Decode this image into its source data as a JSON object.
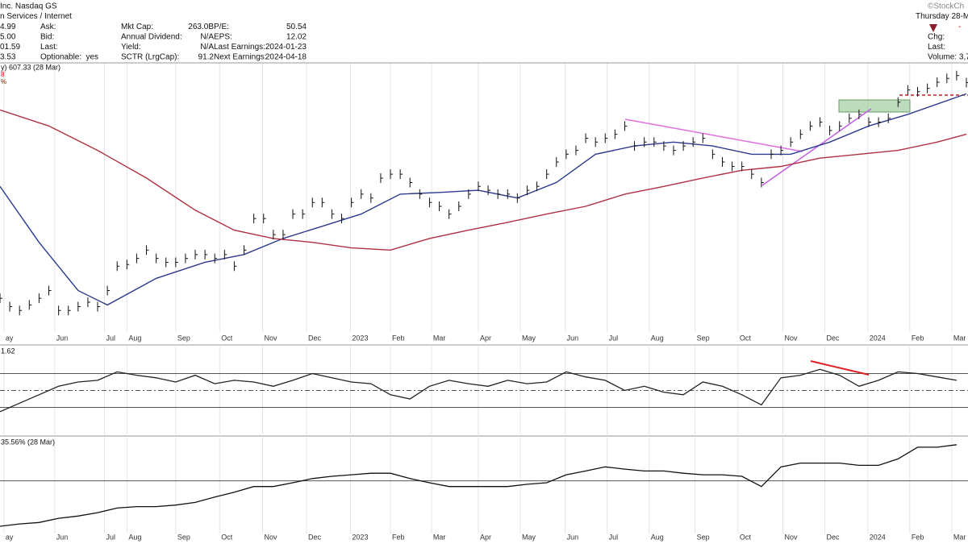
{
  "header": {
    "left": [
      [
        "Inc. Nasdaq GS"
      ],
      [
        "n Services / Internet"
      ],
      [
        "4.99",
        "Ask:",
        "Mkt Cap:",
        "263.0B",
        "P/E:",
        "50.54"
      ],
      [
        "5.00",
        "Bid:",
        "Annual Dividend:",
        "N/A",
        "EPS:",
        "12.02"
      ],
      [
        "01.59",
        "Last:",
        "Yield:",
        "N/A",
        "Last Earnings:",
        "2024-01-23"
      ],
      [
        "3.53",
        "Optionable:",
        "yes",
        "SCTR (LrgCap):",
        "91.2",
        "Next Earnings:",
        "2024-04-18"
      ]
    ],
    "right": [
      "©StockCh",
      "Thursday 28-M",
      "-",
      "Chg:",
      "Last:",
      "Volume: 3,7"
    ]
  },
  "chart_data": [
    {
      "type": "price",
      "label": "y) 607.33 (28 Mar)",
      "notes": [
        "8",
        "%"
      ],
      "color": "#111",
      "x": [
        0,
        1,
        2,
        3,
        4,
        5,
        6,
        7,
        8,
        9,
        10,
        11,
        12,
        13,
        14,
        15,
        16,
        17,
        18,
        19,
        20,
        21,
        22,
        23,
        24,
        25,
        26,
        27,
        28,
        29,
        30,
        31,
        32,
        33,
        34,
        35,
        36,
        37,
        38,
        39,
        40,
        41,
        42,
        43,
        44,
        45,
        46,
        47,
        48,
        49,
        50,
        51,
        52,
        53,
        54,
        55,
        56,
        57,
        58,
        59,
        60,
        61,
        62,
        63,
        64,
        65,
        66,
        67,
        68,
        69,
        70,
        71,
        72,
        73,
        74,
        75,
        76,
        77,
        78,
        79,
        80,
        81,
        82,
        83,
        84,
        85,
        86,
        87,
        88,
        89,
        90,
        91,
        92,
        93,
        94,
        95,
        96,
        97,
        98,
        99
      ],
      "values": [
        218,
        203,
        196,
        206,
        218,
        232,
        196,
        196,
        203,
        211,
        203,
        232,
        276,
        279,
        290,
        305,
        290,
        283,
        283,
        290,
        297,
        297,
        290,
        297,
        276,
        305,
        362,
        362,
        333,
        333,
        370,
        370,
        391,
        391,
        370,
        362,
        391,
        406,
        399,
        435,
        442,
        442,
        427,
        406,
        391,
        384,
        370,
        384,
        406,
        420,
        413,
        406,
        406,
        399,
        413,
        420,
        442,
        464,
        478,
        485,
        507,
        500,
        507,
        514,
        529,
        493,
        500,
        500,
        493,
        485,
        493,
        500,
        507,
        478,
        464,
        456,
        456,
        442,
        427,
        478,
        485,
        500,
        514,
        529,
        536,
        521,
        529,
        543,
        550,
        536,
        536,
        543,
        572,
        594,
        591,
        597,
        608,
        615,
        620,
        607.33
      ],
      "overlays": [
        {
          "color": "#2b3a8f",
          "x": [
            0,
            4,
            8,
            11,
            16,
            21,
            25,
            29,
            33,
            37,
            41,
            45,
            49,
            53,
            57,
            61,
            65,
            69,
            73,
            77,
            81,
            85,
            89,
            93,
            99
          ],
          "values": [
            420,
            319,
            232,
            206,
            254,
            283,
            297,
            326,
            348,
            370,
            406,
            409,
            413,
            399,
            427,
            478,
            493,
            500,
            493,
            478,
            478,
            500,
            529,
            550,
            587
          ]
        },
        {
          "color": "#b03040",
          "x": [
            0,
            5,
            10,
            15,
            20,
            24,
            28,
            32,
            36,
            40,
            44,
            48,
            52,
            56,
            60,
            64,
            68,
            72,
            76,
            80,
            84,
            88,
            92,
            96,
            99
          ],
          "values": [
            558,
            529,
            485,
            435,
            377,
            341,
            326,
            319,
            309,
            305,
            326,
            341,
            355,
            370,
            384,
            406,
            420,
            435,
            449,
            456,
            471,
            478,
            485,
            500,
            514
          ]
        }
      ],
      "xlim": [
        0,
        99
      ],
      "ylim": [
        160,
        640
      ],
      "xticks": [
        {
          "value": 0.4,
          "label": "ay"
        },
        {
          "value": 5.6,
          "label": "Jun"
        },
        {
          "value": 10.7,
          "label": "Jul"
        },
        {
          "value": 13,
          "label": "Aug"
        },
        {
          "value": 18,
          "label": "Sep"
        },
        {
          "value": 22.5,
          "label": "Oct"
        },
        {
          "value": 26.9,
          "label": "Nov"
        },
        {
          "value": 31.4,
          "label": "Dec"
        },
        {
          "value": 35.9,
          "label": "2023"
        },
        {
          "value": 40,
          "label": "Feb"
        },
        {
          "value": 44.2,
          "label": "Mar"
        },
        {
          "value": 49,
          "label": "Apr"
        },
        {
          "value": 53.3,
          "label": "May"
        },
        {
          "value": 57.9,
          "label": "Jun"
        },
        {
          "value": 62.2,
          "label": "Jul"
        },
        {
          "value": 66.5,
          "label": "Aug"
        },
        {
          "value": 71.2,
          "label": "Sep"
        },
        {
          "value": 75.6,
          "label": "Oct"
        },
        {
          "value": 80.2,
          "label": "Nov"
        },
        {
          "value": 84.5,
          "label": "Dec"
        },
        {
          "value": 88.9,
          "label": "2024"
        },
        {
          "value": 93.2,
          "label": "Feb"
        },
        {
          "value": 97.5,
          "label": "Mar"
        }
      ]
    },
    {
      "type": "line",
      "label": "1.62",
      "color": "#222",
      "x": [
        0,
        2,
        4,
        6,
        8,
        10,
        12,
        14,
        16,
        18,
        20,
        22,
        24,
        26,
        28,
        30,
        32,
        34,
        36,
        38,
        40,
        42,
        44,
        46,
        48,
        50,
        52,
        54,
        56,
        58,
        60,
        62,
        64,
        66,
        68,
        70,
        72,
        74,
        76,
        78,
        80,
        82,
        84,
        86,
        88,
        90,
        92,
        94,
        96,
        98
      ],
      "values": [
        25,
        35,
        45,
        55,
        60,
        62,
        72,
        68,
        65,
        60,
        68,
        58,
        62,
        60,
        55,
        62,
        70,
        65,
        60,
        58,
        45,
        40,
        55,
        62,
        58,
        55,
        62,
        58,
        60,
        72,
        66,
        62,
        50,
        55,
        48,
        45,
        60,
        55,
        45,
        33,
        65,
        68,
        75,
        68,
        55,
        62,
        72,
        70,
        66,
        62
      ],
      "xlim": [
        0,
        99
      ],
      "ylim": [
        0,
        100
      ],
      "levels": [
        30,
        50,
        70
      ]
    },
    {
      "type": "line",
      "label": "35.56% (28 Mar)",
      "color": "#111",
      "x": [
        0,
        2,
        4,
        6,
        8,
        10,
        12,
        14,
        16,
        18,
        20,
        22,
        24,
        26,
        28,
        30,
        32,
        34,
        36,
        38,
        40,
        42,
        44,
        46,
        48,
        50,
        52,
        54,
        56,
        58,
        60,
        62,
        64,
        66,
        68,
        70,
        72,
        74,
        76,
        78,
        80,
        82,
        84,
        86,
        88,
        90,
        92,
        94,
        96,
        98
      ],
      "values": [
        14,
        14.6,
        15,
        16.1,
        16.7,
        17.6,
        18.8,
        19.2,
        19.2,
        19.6,
        20.3,
        21.7,
        23,
        24.5,
        24.5,
        25.5,
        26.6,
        27.2,
        27.6,
        28,
        28,
        26.6,
        25.5,
        24.5,
        24.5,
        24.5,
        24.5,
        25.1,
        25.5,
        27.6,
        28.6,
        29.7,
        29.1,
        28.6,
        28.6,
        28,
        27.6,
        27.6,
        27.2,
        24.5,
        29.7,
        30.7,
        30.7,
        30.7,
        30.1,
        30.1,
        31.8,
        34.9,
        34.9,
        35.56
      ],
      "xlim": [
        0,
        99
      ],
      "ylim": [
        12.5,
        37
      ],
      "levels": [
        26
      ],
      "xticks": [
        {
          "value": 0.4,
          "label": "ay"
        },
        {
          "value": 5.6,
          "label": "Jun"
        },
        {
          "value": 10.7,
          "label": "Jul"
        },
        {
          "value": 13,
          "label": "Aug"
        },
        {
          "value": 18,
          "label": "Sep"
        },
        {
          "value": 22.5,
          "label": "Oct"
        },
        {
          "value": 26.9,
          "label": "Nov"
        },
        {
          "value": 31.4,
          "label": "Dec"
        },
        {
          "value": 35.9,
          "label": "2023"
        },
        {
          "value": 40,
          "label": "Feb"
        },
        {
          "value": 44.2,
          "label": "Mar"
        },
        {
          "value": 49,
          "label": "Apr"
        },
        {
          "value": 53.3,
          "label": "May"
        },
        {
          "value": 57.9,
          "label": "Jun"
        },
        {
          "value": 62.2,
          "label": "Jul"
        },
        {
          "value": 66.5,
          "label": "Aug"
        },
        {
          "value": 71.2,
          "label": "Sep"
        },
        {
          "value": 75.6,
          "label": "Oct"
        },
        {
          "value": 80.2,
          "label": "Nov"
        },
        {
          "value": 84.5,
          "label": "Dec"
        },
        {
          "value": 88.9,
          "label": "2024"
        },
        {
          "value": 93.2,
          "label": "Feb"
        },
        {
          "value": 97.5,
          "label": "Mar"
        }
      ]
    }
  ]
}
